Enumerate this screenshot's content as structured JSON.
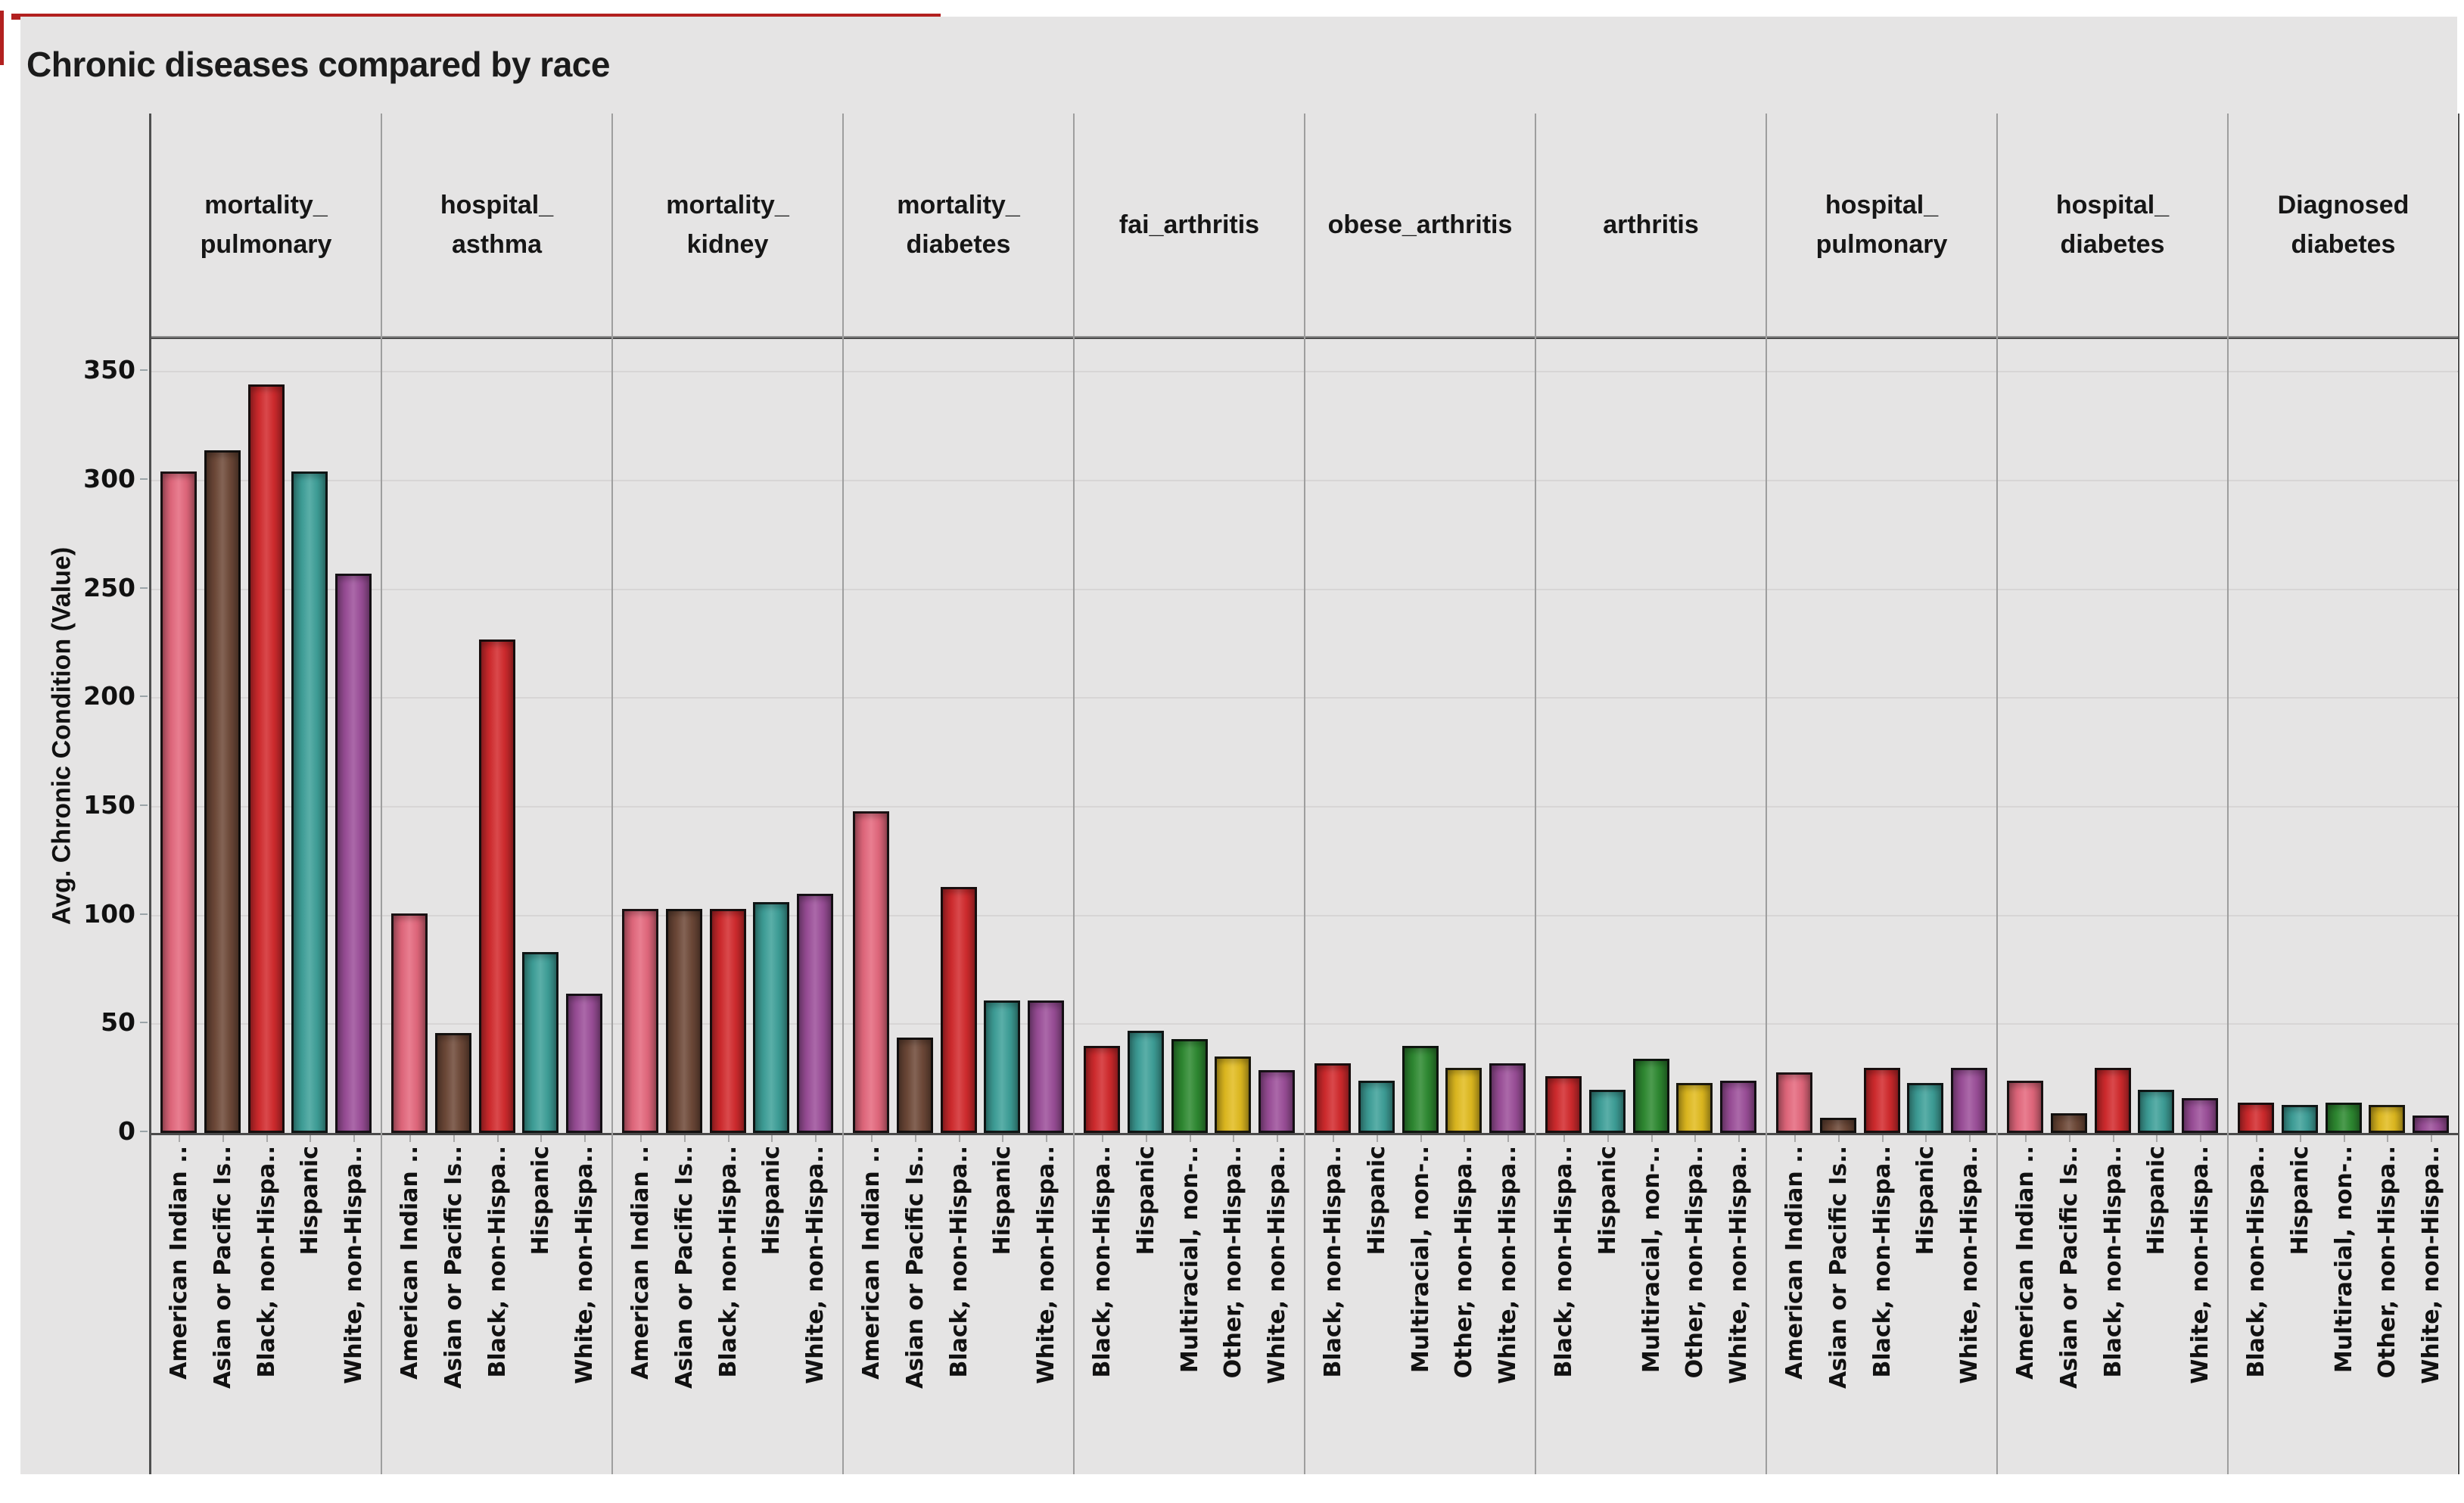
{
  "page": {
    "background": "#ffffff",
    "accent_color": "#b2201f",
    "figure_background": "#e5e4e4"
  },
  "chart_data": {
    "type": "bar",
    "title": "Chronic diseases compared by race",
    "ylabel": "Avg. Chronic Condition (Value)",
    "xlabel": "",
    "ylim": [
      0,
      365
    ],
    "yticks": [
      0,
      50,
      100,
      150,
      200,
      250,
      300,
      350
    ],
    "grid": true,
    "legend_position": "none",
    "race_colors": {
      "American Indian ..": "#e5697e",
      "Asian or Pacific Is..": "#6f4a39",
      "Black, non-Hispa..": "#d32b2e",
      "Hispanic": "#3fa19a",
      "Multiracial, non-..": "#2f8b32",
      "Other, non-Hispa..": "#e2bc20",
      "White, non-Hispa..": "#9d509b"
    },
    "facets": [
      {
        "label": "mortality_pulmonary",
        "label_lines": [
          "mortality_",
          "pulmonary"
        ],
        "categories": [
          "American Indian ..",
          "Asian or Pacific Is..",
          "Black, non-Hispa..",
          "Hispanic",
          "White, non-Hispa.."
        ],
        "values": [
          304,
          314,
          344,
          304,
          257
        ]
      },
      {
        "label": "hospital_asthma",
        "label_lines": [
          "hospital_",
          "asthma"
        ],
        "categories": [
          "American Indian ..",
          "Asian or Pacific Is..",
          "Black, non-Hispa..",
          "Hispanic",
          "White, non-Hispa.."
        ],
        "values": [
          101,
          46,
          227,
          83,
          64
        ]
      },
      {
        "label": "mortality_kidney",
        "label_lines": [
          "mortality_",
          "kidney"
        ],
        "categories": [
          "American Indian ..",
          "Asian or Pacific Is..",
          "Black, non-Hispa..",
          "Hispanic",
          "White, non-Hispa.."
        ],
        "values": [
          103,
          103,
          103,
          106,
          110
        ]
      },
      {
        "label": "mortality_diabetes",
        "label_lines": [
          "mortality_",
          "diabetes"
        ],
        "categories": [
          "American Indian ..",
          "Asian or Pacific Is..",
          "Black, non-Hispa..",
          "Hispanic",
          "White, non-Hispa.."
        ],
        "values": [
          148,
          44,
          113,
          61,
          61
        ]
      },
      {
        "label": "fai_arthritis",
        "label_lines": [
          "fai_arthritis"
        ],
        "categories": [
          "Black, non-Hispa..",
          "Hispanic",
          "Multiracial, non-..",
          "Other, non-Hispa..",
          "White, non-Hispa.."
        ],
        "values": [
          40,
          47,
          43,
          35,
          29
        ]
      },
      {
        "label": "obese_arthritis",
        "label_lines": [
          "obese_arthritis"
        ],
        "categories": [
          "Black, non-Hispa..",
          "Hispanic",
          "Multiracial, non-..",
          "Other, non-Hispa..",
          "White, non-Hispa.."
        ],
        "values": [
          32,
          24,
          40,
          30,
          32
        ]
      },
      {
        "label": "arthritis",
        "label_lines": [
          "arthritis"
        ],
        "categories": [
          "Black, non-Hispa..",
          "Hispanic",
          "Multiracial, non-..",
          "Other, non-Hispa..",
          "White, non-Hispa.."
        ],
        "values": [
          26,
          20,
          34,
          23,
          24
        ]
      },
      {
        "label": "hospital_pulmonary",
        "label_lines": [
          "hospital_",
          "pulmonary"
        ],
        "categories": [
          "American Indian ..",
          "Asian or Pacific Is..",
          "Black, non-Hispa..",
          "Hispanic",
          "White, non-Hispa.."
        ],
        "values": [
          28,
          7,
          30,
          23,
          30
        ]
      },
      {
        "label": "hospital_diabetes",
        "label_lines": [
          "hospital_",
          "diabetes"
        ],
        "categories": [
          "American Indian ..",
          "Asian or Pacific Is..",
          "Black, non-Hispa..",
          "Hispanic",
          "White, non-Hispa.."
        ],
        "values": [
          24,
          9,
          30,
          20,
          16
        ]
      },
      {
        "label": "Diagnosed diabetes",
        "label_lines": [
          "Diagnosed",
          "diabetes"
        ],
        "categories": [
          "Black, non-Hispa..",
          "Hispanic",
          "Multiracial, non-..",
          "Other, non-Hispa..",
          "White, non-Hispa.."
        ],
        "values": [
          14,
          13,
          14,
          13,
          8
        ]
      }
    ]
  }
}
